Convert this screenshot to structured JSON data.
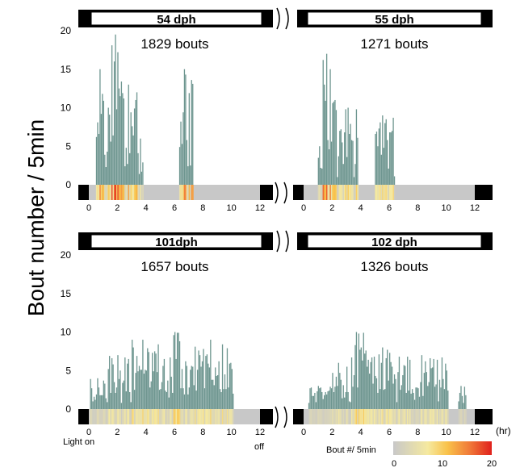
{
  "figure": {
    "ylabel": "Bout number / 5min",
    "xunit": "(hr)",
    "light_on": "Light on",
    "light_off": "off",
    "colorbar": {
      "label": "Bout #/ 5min",
      "ticks": [
        "0",
        "10",
        "20"
      ],
      "colors": [
        "#c8c8c8",
        "#f5e9a0",
        "#f9c24a",
        "#f07838",
        "#e0201c"
      ]
    },
    "bar_color": "#6e9690",
    "ytick_labels_top": [
      "20",
      "15",
      "10",
      "5",
      "0"
    ],
    "ytick_labels_bottom": [
      "20",
      "15",
      "10",
      "5",
      "0"
    ],
    "xtick_labels": [
      "0",
      "2",
      "4",
      "6",
      "8",
      "10",
      "12"
    ]
  },
  "chart_data": [
    {
      "type": "bar",
      "title": "54 dph",
      "subtitle": "1829 bouts",
      "xlabel": "",
      "ylabel": "Bout number / 5min",
      "xlim": [
        0,
        12
      ],
      "ylim": [
        0,
        20
      ],
      "bins": [
        {
          "start": 0.5,
          "end": 1.2,
          "peak": 15,
          "seed": 3
        },
        {
          "start": 1.2,
          "end": 1.6,
          "peak": 10,
          "seed": 7
        },
        {
          "start": 1.6,
          "end": 2.3,
          "peak": 19.5,
          "seed": 11
        },
        {
          "start": 2.3,
          "end": 3.4,
          "peak": 13,
          "seed": 5
        },
        {
          "start": 3.4,
          "end": 3.8,
          "peak": 6,
          "seed": 13
        },
        {
          "start": 6.3,
          "end": 7.3,
          "peak": 15,
          "seed": 17
        }
      ]
    },
    {
      "type": "bar",
      "title": "55 dph",
      "subtitle": "1271 bouts",
      "xlabel": "",
      "ylabel": "Bout number / 5min",
      "xlim": [
        0,
        12
      ],
      "ylim": [
        0,
        20
      ],
      "bins": [
        {
          "start": 1.0,
          "end": 1.3,
          "peak": 5,
          "seed": 19
        },
        {
          "start": 1.3,
          "end": 2.0,
          "peak": 17,
          "seed": 23
        },
        {
          "start": 2.0,
          "end": 2.6,
          "peak": 11,
          "seed": 29
        },
        {
          "start": 2.6,
          "end": 3.8,
          "peak": 10,
          "seed": 31
        },
        {
          "start": 5.0,
          "end": 6.4,
          "peak": 9,
          "seed": 37
        }
      ]
    },
    {
      "type": "bar",
      "title": "101dph",
      "subtitle": "1657 bouts",
      "xlabel": "",
      "ylabel": "Bout number / 5min",
      "xlim": [
        0,
        12
      ],
      "ylim": [
        0,
        20
      ],
      "bins": [
        {
          "start": 0.1,
          "end": 1.3,
          "peak": 4,
          "seed": 41
        },
        {
          "start": 1.3,
          "end": 3.0,
          "peak": 7,
          "seed": 43
        },
        {
          "start": 3.0,
          "end": 5.0,
          "peak": 9,
          "seed": 47
        },
        {
          "start": 5.0,
          "end": 7.5,
          "peak": 10,
          "seed": 53
        },
        {
          "start": 7.5,
          "end": 10.2,
          "peak": 9,
          "seed": 59
        }
      ]
    },
    {
      "type": "bar",
      "title": "102 dph",
      "subtitle": "1326 bouts",
      "xlabel": "",
      "ylabel": "Bout number / 5min",
      "xlim": [
        0,
        12
      ],
      "ylim": [
        0,
        20
      ],
      "bins": [
        {
          "start": 0.3,
          "end": 2.0,
          "peak": 3,
          "seed": 61
        },
        {
          "start": 2.0,
          "end": 3.2,
          "peak": 6,
          "seed": 67
        },
        {
          "start": 3.2,
          "end": 4.5,
          "peak": 10,
          "seed": 71
        },
        {
          "start": 4.5,
          "end": 7.0,
          "peak": 8,
          "seed": 73
        },
        {
          "start": 7.0,
          "end": 10.2,
          "peak": 7,
          "seed": 79
        },
        {
          "start": 10.8,
          "end": 11.4,
          "peak": 3,
          "seed": 83
        }
      ]
    }
  ]
}
